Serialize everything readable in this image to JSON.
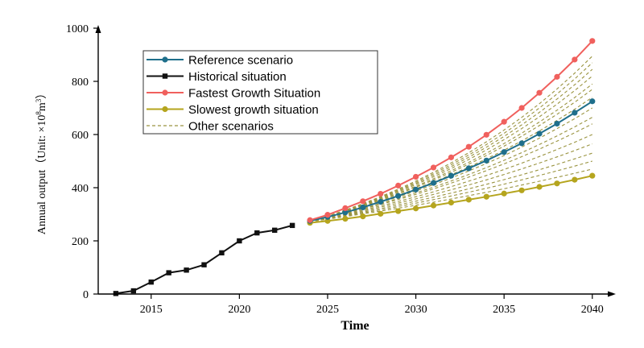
{
  "chart_data": {
    "type": "line",
    "xlabel": "Time",
    "ylabel": "Annual output（Unit: ×10⁸m³）",
    "ylabel_parts": {
      "main": "Annual output（Unit:  ×10",
      "sup1": "8",
      "mid": "m",
      "sup2": "3",
      "end": "）"
    },
    "xlim": [
      2012,
      2041
    ],
    "ylim": [
      0,
      1000
    ],
    "x_ticks": [
      2015,
      2020,
      2025,
      2030,
      2035,
      2040
    ],
    "y_ticks": [
      0,
      200,
      400,
      600,
      800,
      1000
    ],
    "legend_position": "top-left",
    "series": [
      {
        "name": "Reference scenario",
        "color": "#1f6f8b",
        "marker": "circle",
        "x": [
          2024,
          2025,
          2026,
          2027,
          2028,
          2029,
          2030,
          2031,
          2032,
          2033,
          2034,
          2035,
          2036,
          2037,
          2038,
          2039,
          2040
        ],
        "values": [
          275,
          290,
          307,
          326,
          347,
          369,
          393,
          418,
          445,
          473,
          502,
          534,
          567,
          603,
          641,
          682,
          725
        ]
      },
      {
        "name": "Historical situation",
        "color": "#111111",
        "marker": "square",
        "x": [
          2013,
          2014,
          2015,
          2016,
          2017,
          2018,
          2019,
          2020,
          2021,
          2022,
          2023
        ],
        "values": [
          2,
          12,
          45,
          80,
          90,
          110,
          155,
          200,
          230,
          240,
          258
        ]
      },
      {
        "name": "Fastest Growth Situation",
        "color": "#f0605d",
        "marker": "circle",
        "x": [
          2024,
          2025,
          2026,
          2027,
          2028,
          2029,
          2030,
          2031,
          2032,
          2033,
          2034,
          2035,
          2036,
          2037,
          2038,
          2039,
          2040
        ],
        "values": [
          278,
          298,
          323,
          349,
          377,
          408,
          441,
          476,
          514,
          554,
          599,
          648,
          700,
          757,
          817,
          882,
          952
        ]
      },
      {
        "name": "Slowest growth situation",
        "color": "#b5a51e",
        "marker": "circle",
        "x": [
          2024,
          2025,
          2026,
          2027,
          2028,
          2029,
          2030,
          2031,
          2032,
          2033,
          2034,
          2035,
          2036,
          2037,
          2038,
          2039,
          2040
        ],
        "values": [
          268,
          275,
          283,
          292,
          302,
          312,
          322,
          333,
          344,
          355,
          366,
          378,
          390,
          403,
          416,
          430,
          445
        ]
      }
    ],
    "other_scenarios": {
      "name": "Other scenarios",
      "color": "#9a9440",
      "style": "dashed",
      "x_start": 2024,
      "x_end": 2040,
      "start_value": 272,
      "end_values": [
        470,
        500,
        530,
        565,
        600,
        640,
        665,
        700,
        740,
        770,
        790,
        820,
        845,
        870,
        895
      ]
    }
  }
}
